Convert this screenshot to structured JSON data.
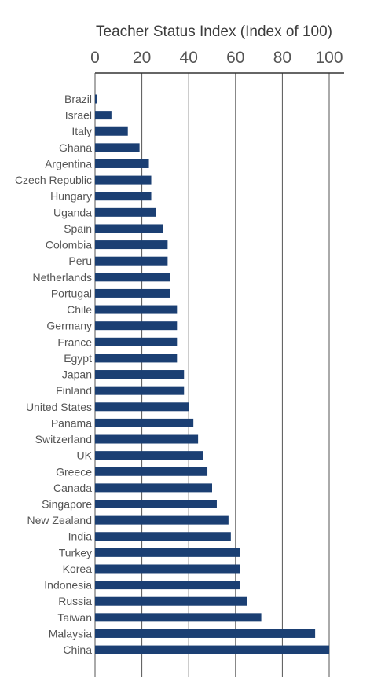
{
  "chart_data": {
    "type": "bar",
    "orientation": "horizontal",
    "title": "",
    "xlabel": "Teacher Status Index (Index of 100)",
    "ylabel": "",
    "xlim": [
      0,
      100
    ],
    "xticks": [
      "0",
      "20",
      "40",
      "60",
      "80",
      "100"
    ],
    "grid": true,
    "bar_color": "#1b3f73",
    "categories": [
      "Brazil",
      "Israel",
      "Italy",
      "Ghana",
      "Argentina",
      "Czech Republic",
      "Hungary",
      "Uganda",
      "Spain",
      "Colombia",
      "Peru",
      "Netherlands",
      "Portugal",
      "Chile",
      "Germany",
      "France",
      "Egypt",
      "Japan",
      "Finland",
      "United States",
      "Panama",
      "Switzerland",
      "UK",
      "Greece",
      "Canada",
      "Singapore",
      "New Zealand",
      "India",
      "Turkey",
      "Korea",
      "Indonesia",
      "Russia",
      "Taiwan",
      "Malaysia",
      "China"
    ],
    "values": [
      1,
      7,
      14,
      19,
      23,
      24,
      24,
      26,
      29,
      31,
      31,
      32,
      32,
      35,
      35,
      35,
      35,
      38,
      38,
      40,
      42,
      44,
      46,
      48,
      50,
      52,
      57,
      58,
      62,
      62,
      62,
      65,
      71,
      94,
      100
    ]
  }
}
